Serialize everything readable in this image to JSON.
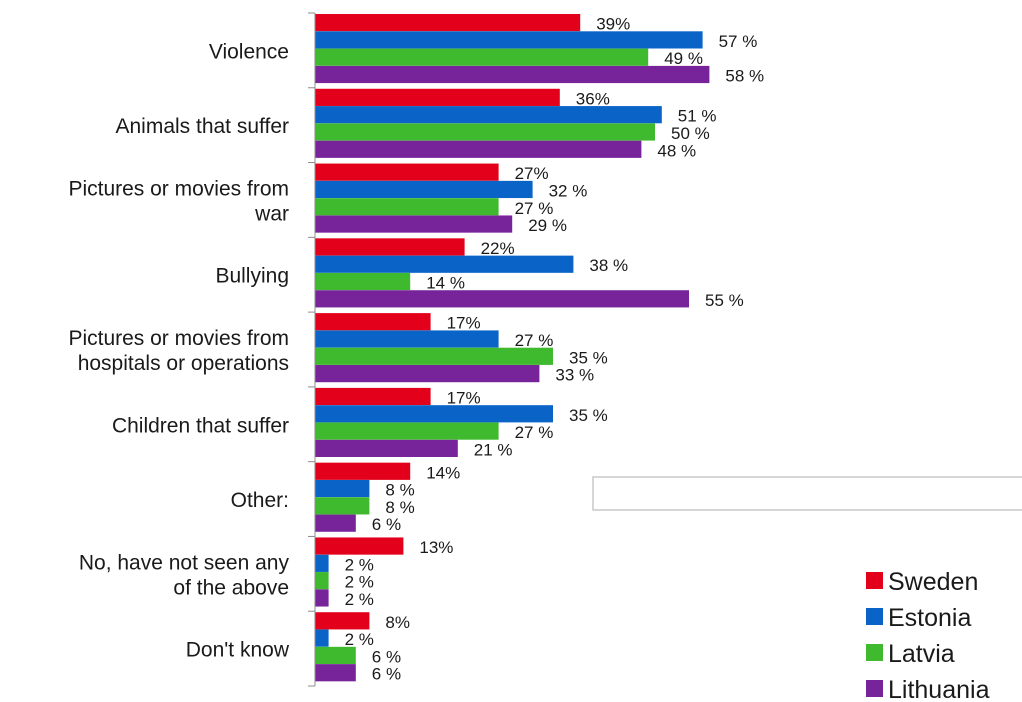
{
  "chart_data": {
    "type": "bar",
    "orientation": "horizontal",
    "categories": [
      [
        "Violence"
      ],
      [
        "Animals that suffer"
      ],
      [
        "Pictures or movies from",
        "war"
      ],
      [
        "Bullying"
      ],
      [
        "Pictures or movies from",
        "hospitals or operations"
      ],
      [
        "Children that suffer"
      ],
      [
        "Other:"
      ],
      [
        "No, have not seen any",
        "of the above"
      ],
      [
        "Don't know"
      ]
    ],
    "series": [
      {
        "name": "Sweden",
        "color": "#e2001a",
        "label_suffix": "%",
        "values": [
          39,
          36,
          27,
          22,
          17,
          17,
          14,
          13,
          8
        ]
      },
      {
        "name": "Estonia",
        "color": "#0a64c8",
        "label_suffix": " %",
        "values": [
          57,
          51,
          32,
          38,
          27,
          35,
          8,
          2,
          2
        ]
      },
      {
        "name": "Latvia",
        "color": "#3fb92e",
        "label_suffix": " %",
        "values": [
          49,
          50,
          27,
          14,
          35,
          27,
          8,
          2,
          6
        ]
      },
      {
        "name": "Lithuania",
        "color": "#77239a",
        "label_suffix": " %",
        "values": [
          58,
          48,
          29,
          55,
          33,
          21,
          6,
          2,
          6
        ]
      }
    ],
    "xlim": [
      0,
      100
    ],
    "grid": false,
    "legend_position": "bottom-right"
  }
}
